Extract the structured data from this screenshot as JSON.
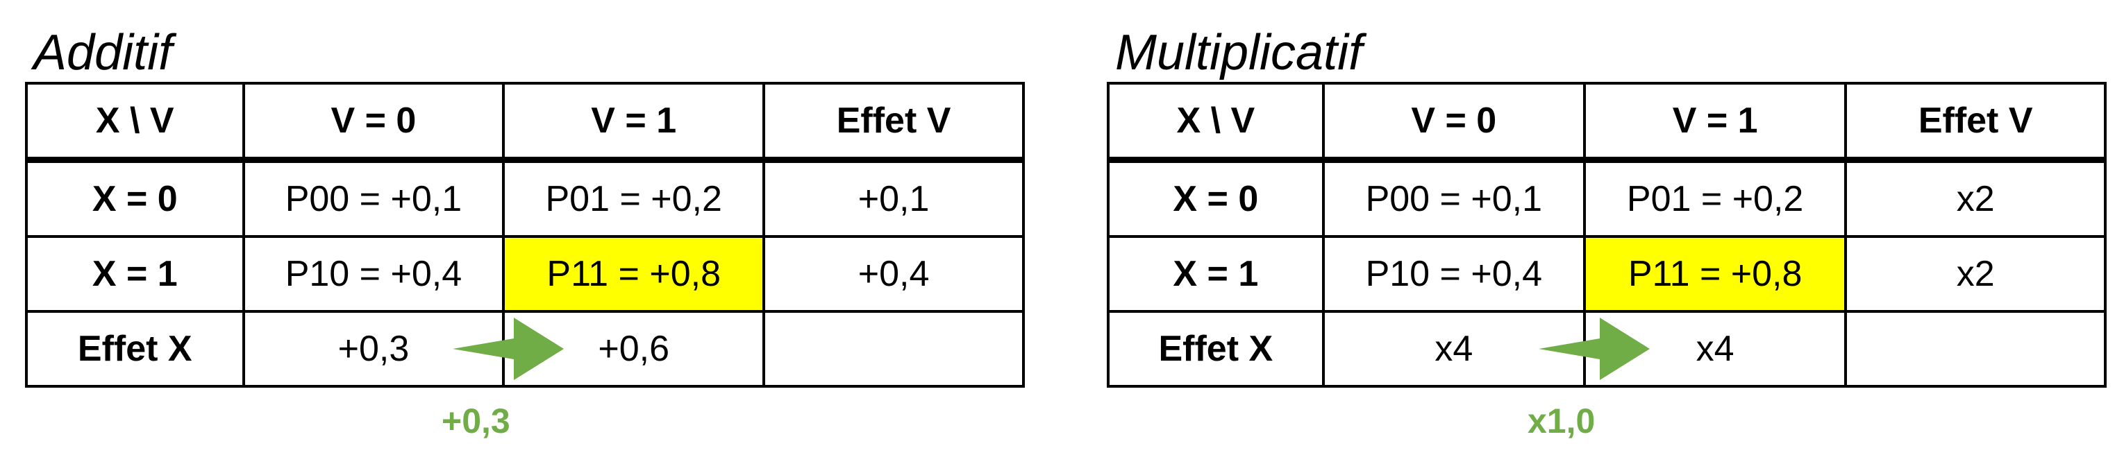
{
  "colors": {
    "highlight": "#ffff00",
    "accent_green": "#70ad47",
    "border": "#000000"
  },
  "panels": [
    {
      "title": "Additif",
      "header": [
        "X \\ V",
        "V = 0",
        "V = 1",
        "Effet V"
      ],
      "rows": [
        [
          "X = 0",
          "P00 = +0,1",
          "P01 = +0,2",
          "+0,1"
        ],
        [
          "X = 1",
          "P10 = +0,4",
          "P11 = +0,8",
          "+0,4"
        ],
        [
          "Effet X",
          "+0,3",
          "+0,6",
          ""
        ]
      ],
      "delta": "+0,3"
    },
    {
      "title": "Multiplicatif",
      "header": [
        "X \\ V",
        "V = 0",
        "V = 1",
        "Effet V"
      ],
      "rows": [
        [
          "X = 0",
          "P00 = +0,1",
          "P01 = +0,2",
          "x2"
        ],
        [
          "X = 1",
          "P10 = +0,4",
          "P11 = +0,8",
          "x2"
        ],
        [
          "Effet X",
          "x4",
          "x4",
          ""
        ]
      ],
      "delta": "x1,0"
    }
  ]
}
